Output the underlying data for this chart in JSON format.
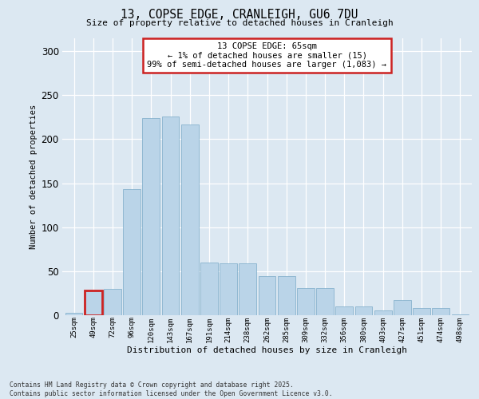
{
  "title": "13, COPSE EDGE, CRANLEIGH, GU6 7DU",
  "subtitle": "Size of property relative to detached houses in Cranleigh",
  "xlabel": "Distribution of detached houses by size in Cranleigh",
  "ylabel": "Number of detached properties",
  "bar_color": "#bad4e8",
  "bar_edge_color": "#7aaac8",
  "background_color": "#dce8f2",
  "categories": [
    "25sqm",
    "49sqm",
    "72sqm",
    "96sqm",
    "120sqm",
    "143sqm",
    "167sqm",
    "191sqm",
    "214sqm",
    "238sqm",
    "262sqm",
    "285sqm",
    "309sqm",
    "332sqm",
    "356sqm",
    "380sqm",
    "403sqm",
    "427sqm",
    "451sqm",
    "474sqm",
    "498sqm"
  ],
  "values": [
    3,
    28,
    30,
    143,
    224,
    226,
    217,
    60,
    59,
    59,
    44,
    44,
    31,
    31,
    10,
    10,
    5,
    17,
    8,
    8,
    1
  ],
  "highlight_bar_index": 1,
  "highlight_edge_color": "#cc2222",
  "annotation_text": "13 COPSE EDGE: 65sqm\n← 1% of detached houses are smaller (15)\n99% of semi-detached houses are larger (1,083) →",
  "annotation_box_facecolor": "#ffffff",
  "annotation_box_edgecolor": "#cc2222",
  "ylim": [
    0,
    315
  ],
  "yticks": [
    0,
    50,
    100,
    150,
    200,
    250,
    300
  ],
  "footnote": "Contains HM Land Registry data © Crown copyright and database right 2025.\nContains public sector information licensed under the Open Government Licence v3.0."
}
